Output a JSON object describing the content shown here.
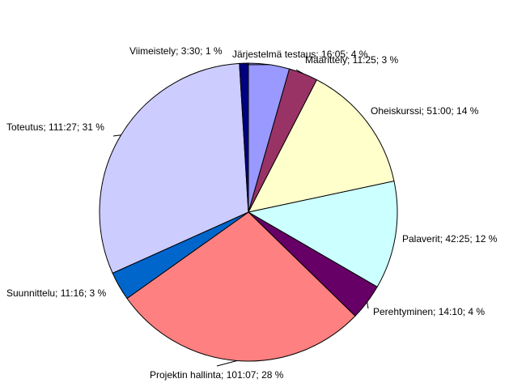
{
  "chart_data": {
    "type": "pie",
    "title": "",
    "start_angle_deg": 0,
    "direction": "clockwise",
    "slices": [
      {
        "label": "Järjestelmä testaus; 16:05; 4 %",
        "value": 16.083,
        "color": "#9999ff"
      },
      {
        "label": "Määrittely; 11:25; 3 %",
        "value": 11.417,
        "color": "#993366"
      },
      {
        "label": "Oheiskurssi; 51:00; 14 %",
        "value": 51.0,
        "color": "#ffffcc"
      },
      {
        "label": "Palaverit; 42:25; 12 %",
        "value": 42.417,
        "color": "#ccffff"
      },
      {
        "label": "Perehtyminen; 14:10; 4 %",
        "value": 14.167,
        "color": "#660066"
      },
      {
        "label": "Projektin hallinta; 101:07; 28 %",
        "value": 101.117,
        "color": "#ff8080"
      },
      {
        "label": "Suunnittelu; 11:16; 3 %",
        "value": 11.267,
        "color": "#0066cc"
      },
      {
        "label": "Toteutus; 111:27; 31 %",
        "value": 111.45,
        "color": "#ccccff"
      },
      {
        "label": "Viimeistely; 3:30; 1 %",
        "value": 3.5,
        "color": "#000080"
      }
    ]
  }
}
